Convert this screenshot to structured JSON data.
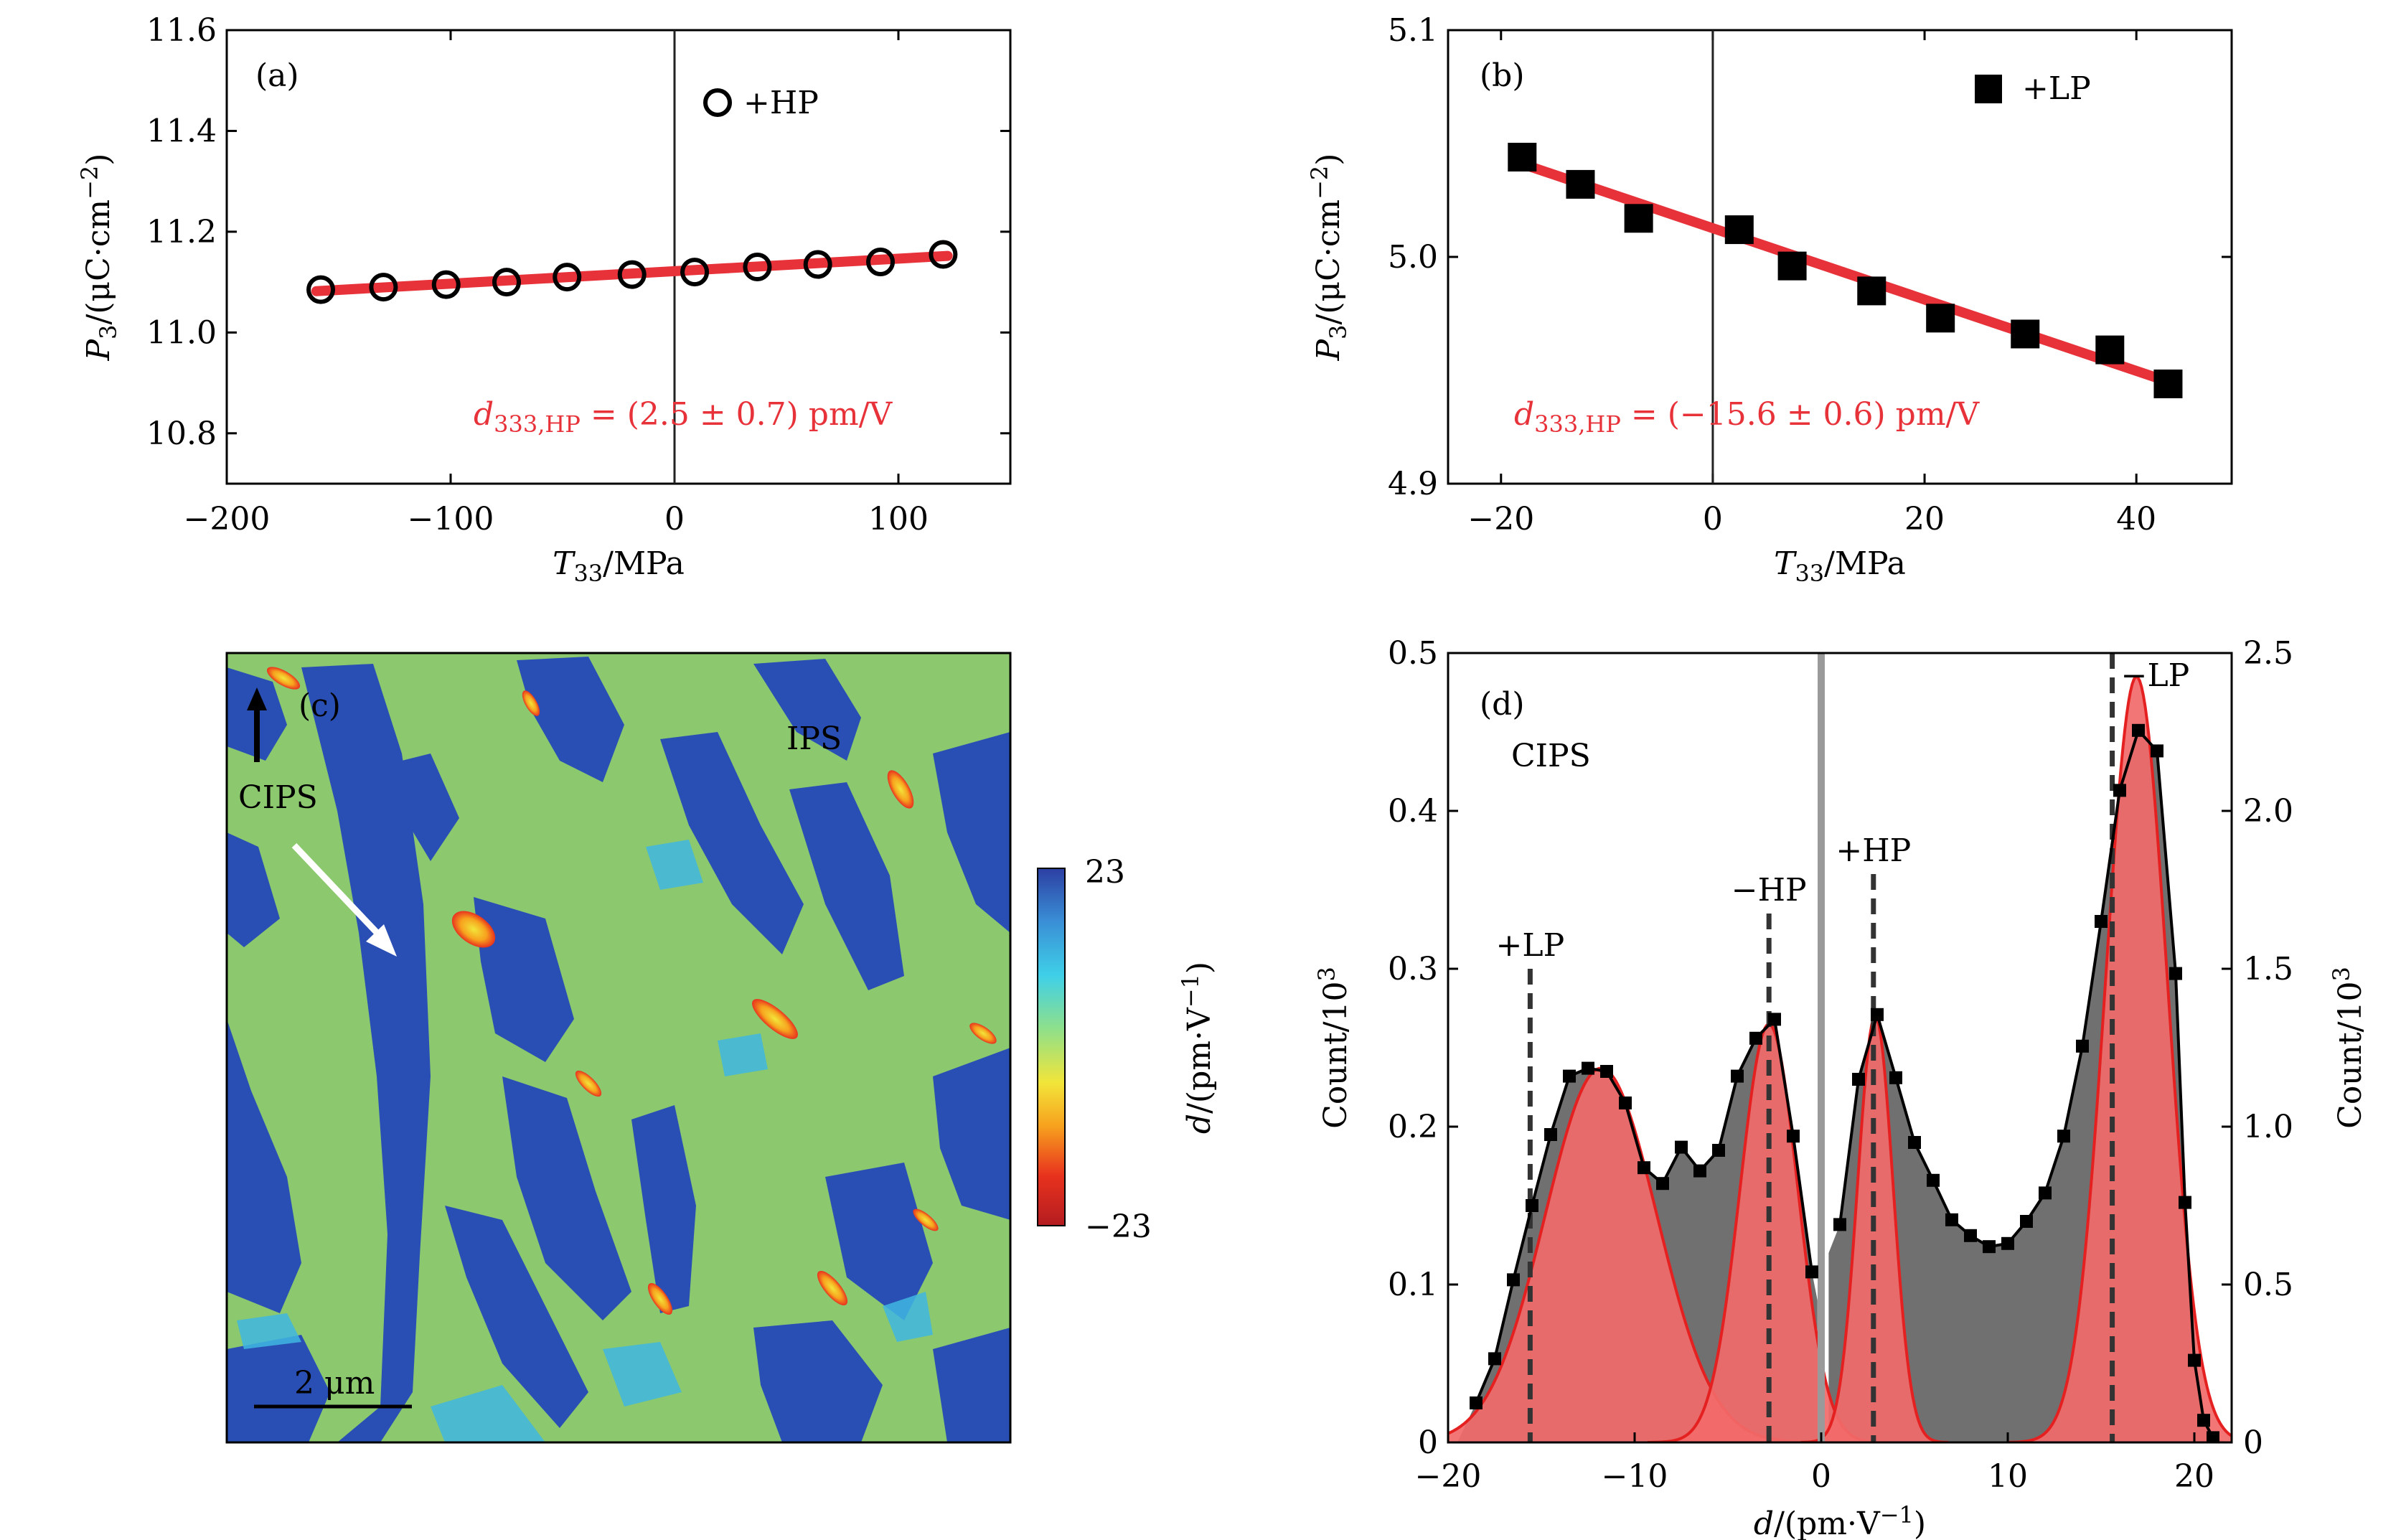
{
  "chart_data": [
    {
      "panel": "(a)",
      "type": "scatter",
      "xlabel_var": "T",
      "xlabel_sub": "33",
      "xlabel_unit": "/MPa",
      "ylabel_var": "P",
      "ylabel_sub": "3",
      "ylabel_unit": "/(μC·cm",
      "ylabel_exp": "−2",
      "ylabel_close": ")",
      "xlim": [
        -200,
        150
      ],
      "ylim": [
        10.7,
        11.6
      ],
      "xticks": [
        "−200",
        "−100",
        "0",
        "100"
      ],
      "xtick_values": [
        -200,
        -100,
        0,
        100
      ],
      "yticks": [
        "10.8",
        "11.0",
        "11.2",
        "11.4",
        "11.6"
      ],
      "ytick_values": [
        10.8,
        11.0,
        11.2,
        11.4,
        11.6
      ],
      "series": [
        {
          "name": "+HP",
          "marker": "open-circle",
          "x": [
            -158,
            -130,
            -102,
            -75,
            -48,
            -19,
            9,
            37,
            64,
            92,
            120
          ],
          "y": [
            11.085,
            11.09,
            11.095,
            11.1,
            11.11,
            11.115,
            11.12,
            11.13,
            11.135,
            11.14,
            11.155
          ]
        }
      ],
      "fit": {
        "x": [
          -160,
          122
        ],
        "y": [
          11.082,
          11.152
        ],
        "color": "#e8323a"
      },
      "vline_x": 0,
      "legend": "+HP",
      "annotation": {
        "var": "d",
        "sub": "333,HP",
        "text": " = (2.5 ± 0.7) pm/V"
      }
    },
    {
      "panel": "(b)",
      "type": "scatter",
      "xlabel_var": "T",
      "xlabel_sub": "33",
      "xlabel_unit": "/MPa",
      "ylabel_var": "P",
      "ylabel_sub": "3",
      "ylabel_unit": "/(μC·cm",
      "ylabel_exp": "−2",
      "ylabel_close": ")",
      "xlim": [
        -25,
        49
      ],
      "ylim": [
        4.9,
        5.1
      ],
      "xticks": [
        "−20",
        "0",
        "20",
        "40"
      ],
      "xtick_values": [
        -20,
        0,
        20,
        40
      ],
      "yticks": [
        "4.9",
        "5.0",
        "5.1"
      ],
      "ytick_values": [
        4.9,
        5.0,
        5.1
      ],
      "series": [
        {
          "name": "+LP",
          "marker": "filled-square",
          "x": [
            -18,
            -12.5,
            -7,
            2.5,
            7.5,
            15,
            21.5,
            29.5,
            37.5,
            43
          ],
          "y": [
            5.044,
            5.032,
            5.017,
            5.012,
            4.996,
            4.985,
            4.973,
            4.966,
            4.959,
            4.944
          ]
        }
      ],
      "fit": {
        "x": [
          -18,
          43
        ],
        "y": [
          5.041,
          4.945
        ],
        "color": "#e8323a"
      },
      "vline_x": 0,
      "legend": "+LP",
      "annotation": {
        "var": "d",
        "sub": "333,HP",
        "text": " = (−15.6 ± 0.6) pm/V"
      }
    },
    {
      "panel": "(c)",
      "type": "heatmap",
      "labels": {
        "sample": "CIPS",
        "region": "IPS",
        "scale_bar": "2 μm"
      },
      "colorbar": {
        "max_label": "23",
        "min_label": "−23",
        "label_var": "d",
        "label_unit": "/(pm·V",
        "label_exp": "−1",
        "label_close": ")",
        "colors": [
          "#2c3fa3",
          "#3a8fd6",
          "#3fd0e8",
          "#8fe08a",
          "#f2e53a",
          "#f7a21e",
          "#e8321e",
          "#b41c20"
        ]
      },
      "background_color": "#8cc96e",
      "domain_color": "#2a4fb4"
    },
    {
      "panel": "(d)",
      "type": "line",
      "xlabel_var": "d",
      "xlabel_unit": "/(pm·V",
      "xlabel_exp": "−1",
      "xlabel_close": ")",
      "ylabel_left": "Count/10",
      "ylabel_right": "Count/10",
      "ylabel_exp": "3",
      "xlim": [
        -20,
        22
      ],
      "ylim_left": [
        0,
        0.5
      ],
      "ylim_right": [
        0,
        2.5
      ],
      "xticks": [
        "−20",
        "−10",
        "0",
        "10",
        "20"
      ],
      "xtick_values": [
        -20,
        -10,
        0,
        10,
        20
      ],
      "yticks_left": [
        "0",
        "0.1",
        "0.2",
        "0.3",
        "0.4",
        "0.5"
      ],
      "ytick_values_left": [
        0,
        0.1,
        0.2,
        0.3,
        0.4,
        0.5
      ],
      "yticks_right": [
        "0",
        "0.5",
        "1.0",
        "1.5",
        "2.0",
        "2.5"
      ],
      "ytick_values_right": [
        0,
        0.5,
        1.0,
        1.5,
        2.0,
        2.5
      ],
      "sample_label": "CIPS",
      "series": [
        {
          "name": "negative-side histogram",
          "x": [
            -18.5,
            -17.5,
            -16.5,
            -15.5,
            -14.5,
            -13.5,
            -12.5,
            -11.5,
            -10.5,
            -9.5,
            -8.5,
            -7.5,
            -6.5,
            -5.5,
            -4.5,
            -3.5,
            -2.5,
            -1.5,
            -0.5
          ],
          "y": [
            0.025,
            0.053,
            0.103,
            0.15,
            0.195,
            0.232,
            0.237,
            0.235,
            0.215,
            0.174,
            0.164,
            0.187,
            0.172,
            0.185,
            0.232,
            0.256,
            0.268,
            0.194,
            0.108
          ]
        },
        {
          "name": "positive-side histogram",
          "x": [
            1.0,
            2.0,
            3.0,
            4.0,
            5.0,
            6.0,
            7.0,
            8.0,
            9.0,
            10.0,
            11.0,
            12.0,
            13.0,
            14.0,
            15.0,
            16.0,
            17.0,
            18.0,
            19.0,
            19.5,
            20.0,
            20.5,
            21.0
          ],
          "y": [
            0.138,
            0.23,
            0.271,
            0.231,
            0.19,
            0.166,
            0.141,
            0.131,
            0.124,
            0.126,
            0.14,
            0.158,
            0.194,
            0.251,
            0.33,
            0.413,
            0.451,
            0.438,
            0.297,
            0.152,
            0.052,
            0.014,
            0.003
          ]
        }
      ],
      "gaussians": [
        {
          "center": -11.8,
          "amplitude": 0.237,
          "sigma": 3.0
        },
        {
          "center": -2.8,
          "amplitude": 0.265,
          "sigma": 1.55
        },
        {
          "center": 2.9,
          "amplitude": 0.27,
          "sigma": 0.95
        },
        {
          "center": 16.9,
          "amplitude": 0.485,
          "sigma": 1.65
        }
      ],
      "peak_lines": [
        {
          "x": -15.6,
          "ytop": 0.3,
          "label": "+LP"
        },
        {
          "x": -2.8,
          "ytop": 0.335,
          "label": "−HP"
        },
        {
          "x": 2.8,
          "ytop": 0.36,
          "label": "+HP"
        },
        {
          "x": 15.6,
          "ytop": 0.5,
          "label": "−LP"
        }
      ]
    }
  ]
}
